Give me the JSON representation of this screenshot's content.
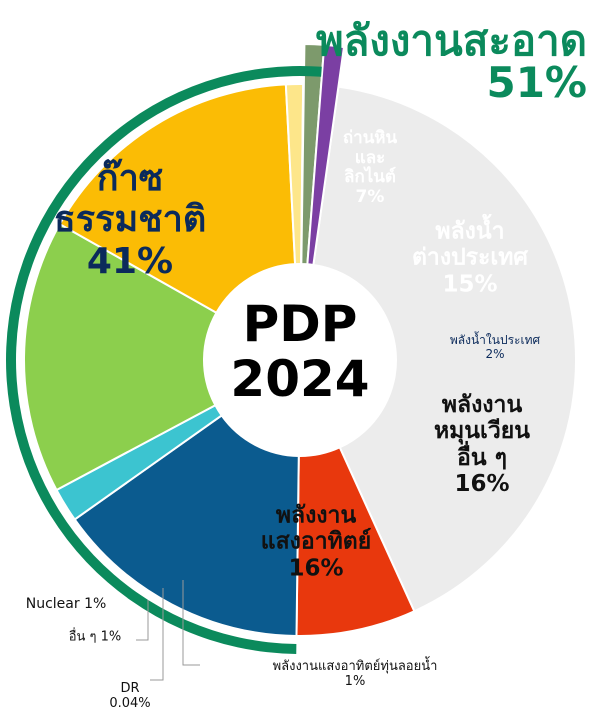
{
  "chart_data": {
    "type": "pie",
    "donut": true,
    "center_label": "PDP\n2024",
    "clean_energy": {
      "label": "พลังงานสะอาด",
      "value": 51,
      "value_label": "51%",
      "color": "#0b8a5c"
    },
    "categories": [
      "ก๊าซ\nธรรมชาติ",
      "ถ่านหิน\nและ\nลิกไนต์",
      "พลังน้ำ\nต่างประเทศ",
      "พลังน้ำในประเทศ",
      "พลังงาน\nหมุนเวียนอื่น ๆ",
      "พลังงาน\nแสงอาทิตย์",
      "พลังงานแสงอาทิตย์ทุ่นลอยน้ำ",
      "DR",
      "อื่น ๆ",
      "Nuclear"
    ],
    "values": [
      41,
      7,
      15,
      2,
      16,
      16,
      1,
      0.04,
      1,
      1
    ],
    "value_labels": [
      "41%",
      "7%",
      "15%",
      "2%",
      "16%",
      "16%",
      "1%",
      "0.04%",
      "1%",
      "1%"
    ],
    "colors": [
      "#ececec",
      "#e8380d",
      "#0b5b8f",
      "#3cc4d0",
      "#8ccf4d",
      "#fbbc05",
      "#fde68a",
      "#d9d9d9",
      "#7d9a6c",
      "#7b3fa3"
    ]
  }
}
